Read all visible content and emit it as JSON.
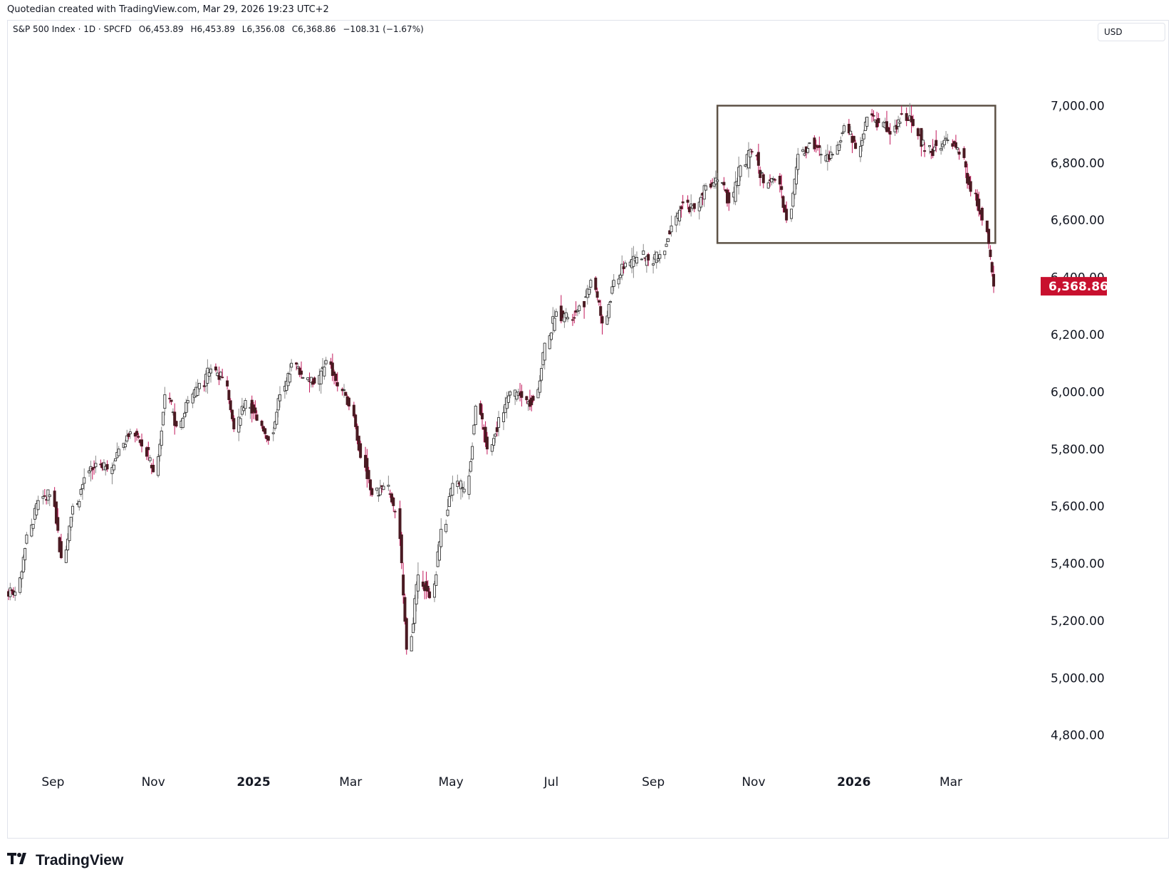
{
  "header": {
    "credit": "Quotedian created with TradingView.com, Mar 29, 2026 19:23 UTC+2"
  },
  "legend": {
    "symbol": "S&P 500 Index · 1D · SPCFD",
    "open": "O6,453.89",
    "high": "H6,453.89",
    "low": "L6,356.08",
    "close": "C6,368.86",
    "change": "−108.31 (−1.67%)"
  },
  "currency_button": {
    "label": "USD"
  },
  "footer": {
    "brand": "TradingView"
  },
  "colors": {
    "up": "#f8f8f8",
    "down": "#4a1a22",
    "wick": "#7a4a52",
    "last_price_bg": "#c8102e",
    "range_box": "#5d5246"
  },
  "chart_data": {
    "type": "candlestick",
    "y_axis": {
      "ticks": [
        4800,
        5000,
        5200,
        5400,
        5600,
        5800,
        6000,
        6200,
        6400,
        6600,
        6800,
        7000
      ],
      "tick_labels": [
        "4,800.00",
        "5,000.00",
        "5,200.00",
        "5,400.00",
        "5,600.00",
        "5,800.00",
        "6,000.00",
        "6,200.00",
        "6,400.00",
        "6,600.00",
        "6,800.00",
        "7,000.00"
      ],
      "range": [
        4670,
        7220
      ],
      "position": "right"
    },
    "x_axis": {
      "tick_labels": [
        "Sep",
        "Nov",
        "2025",
        "Mar",
        "May",
        "Jul",
        "Sep",
        "Nov",
        "2026",
        "Mar"
      ],
      "tick_dates": [
        "2024-09-01",
        "2024-11-01",
        "2025-01-01",
        "2025-03-01",
        "2025-05-01",
        "2025-07-01",
        "2025-09-01",
        "2025-11-01",
        "2026-01-01",
        "2026-03-01"
      ],
      "bold": [
        false,
        false,
        true,
        false,
        false,
        false,
        false,
        false,
        true,
        false
      ],
      "range": [
        "2024-08-05",
        "2026-04-25"
      ]
    },
    "last_price": {
      "label": "6,368.86",
      "value": 6368.86
    },
    "range_box": {
      "date_start": "2025-10-10",
      "date_end": "2026-03-28",
      "price_low": 6520,
      "price_high": 7000
    },
    "series": [
      {
        "date": "2024-08-05",
        "close": 5300
      },
      {
        "date": "2024-08-12",
        "close": 5500
      },
      {
        "date": "2024-08-19",
        "close": 5620
      },
      {
        "date": "2024-08-26",
        "close": 5640
      },
      {
        "date": "2024-09-02",
        "close": 5420
      },
      {
        "date": "2024-09-09",
        "close": 5600
      },
      {
        "date": "2024-09-16",
        "close": 5700
      },
      {
        "date": "2024-09-23",
        "close": 5750
      },
      {
        "date": "2024-09-30",
        "close": 5730
      },
      {
        "date": "2024-10-07",
        "close": 5800
      },
      {
        "date": "2024-10-14",
        "close": 5860
      },
      {
        "date": "2024-10-21",
        "close": 5810
      },
      {
        "date": "2024-10-28",
        "close": 5720
      },
      {
        "date": "2024-11-04",
        "close": 5990
      },
      {
        "date": "2024-11-11",
        "close": 5880
      },
      {
        "date": "2024-11-18",
        "close": 5970
      },
      {
        "date": "2024-11-25",
        "close": 6030
      },
      {
        "date": "2024-12-02",
        "close": 6080
      },
      {
        "date": "2024-12-09",
        "close": 6050
      },
      {
        "date": "2024-12-16",
        "close": 5870
      },
      {
        "date": "2024-12-23",
        "close": 5970
      },
      {
        "date": "2024-12-30",
        "close": 5900
      },
      {
        "date": "2025-01-06",
        "close": 5830
      },
      {
        "date": "2025-01-13",
        "close": 5990
      },
      {
        "date": "2025-01-20",
        "close": 6100
      },
      {
        "date": "2025-01-27",
        "close": 6050
      },
      {
        "date": "2025-02-03",
        "close": 6030
      },
      {
        "date": "2025-02-10",
        "close": 6110
      },
      {
        "date": "2025-02-17",
        "close": 6020
      },
      {
        "date": "2025-02-24",
        "close": 5950
      },
      {
        "date": "2025-03-03",
        "close": 5770
      },
      {
        "date": "2025-03-10",
        "close": 5640
      },
      {
        "date": "2025-03-17",
        "close": 5670
      },
      {
        "date": "2025-03-24",
        "close": 5580
      },
      {
        "date": "2025-03-31",
        "close": 5100
      },
      {
        "date": "2025-04-07",
        "close": 5360
      },
      {
        "date": "2025-04-14",
        "close": 5280
      },
      {
        "date": "2025-04-21",
        "close": 5520
      },
      {
        "date": "2025-04-28",
        "close": 5680
      },
      {
        "date": "2025-05-05",
        "close": 5660
      },
      {
        "date": "2025-05-12",
        "close": 5950
      },
      {
        "date": "2025-05-19",
        "close": 5800
      },
      {
        "date": "2025-05-26",
        "close": 5910
      },
      {
        "date": "2025-06-02",
        "close": 6000
      },
      {
        "date": "2025-06-09",
        "close": 5980
      },
      {
        "date": "2025-06-16",
        "close": 5970
      },
      {
        "date": "2025-06-23",
        "close": 6170
      },
      {
        "date": "2025-06-30",
        "close": 6280
      },
      {
        "date": "2025-07-07",
        "close": 6260
      },
      {
        "date": "2025-07-14",
        "close": 6300
      },
      {
        "date": "2025-07-21",
        "close": 6390
      },
      {
        "date": "2025-07-28",
        "close": 6240
      },
      {
        "date": "2025-08-04",
        "close": 6390
      },
      {
        "date": "2025-08-11",
        "close": 6450
      },
      {
        "date": "2025-08-18",
        "close": 6470
      },
      {
        "date": "2025-08-25",
        "close": 6460
      },
      {
        "date": "2025-09-01",
        "close": 6480
      },
      {
        "date": "2025-09-08",
        "close": 6580
      },
      {
        "date": "2025-09-15",
        "close": 6660
      },
      {
        "date": "2025-09-22",
        "close": 6640
      },
      {
        "date": "2025-09-29",
        "close": 6720
      },
      {
        "date": "2025-10-06",
        "close": 6740
      },
      {
        "date": "2025-10-13",
        "close": 6660
      },
      {
        "date": "2025-10-20",
        "close": 6790
      },
      {
        "date": "2025-10-27",
        "close": 6840
      },
      {
        "date": "2025-11-03",
        "close": 6730
      },
      {
        "date": "2025-11-10",
        "close": 6740
      },
      {
        "date": "2025-11-17",
        "close": 6600
      },
      {
        "date": "2025-11-24",
        "close": 6830
      },
      {
        "date": "2025-12-01",
        "close": 6870
      },
      {
        "date": "2025-12-08",
        "close": 6830
      },
      {
        "date": "2025-12-15",
        "close": 6830
      },
      {
        "date": "2025-12-22",
        "close": 6930
      },
      {
        "date": "2025-12-29",
        "close": 6850
      },
      {
        "date": "2026-01-05",
        "close": 6960
      },
      {
        "date": "2026-01-12",
        "close": 6940
      },
      {
        "date": "2026-01-19",
        "close": 6900
      },
      {
        "date": "2026-01-26",
        "close": 6970
      },
      {
        "date": "2026-02-02",
        "close": 6930
      },
      {
        "date": "2026-02-09",
        "close": 6840
      },
      {
        "date": "2026-02-16",
        "close": 6860
      },
      {
        "date": "2026-02-23",
        "close": 6880
      },
      {
        "date": "2026-03-02",
        "close": 6830
      },
      {
        "date": "2026-03-09",
        "close": 6700
      },
      {
        "date": "2026-03-16",
        "close": 6600
      },
      {
        "date": "2026-03-23",
        "close": 6369
      }
    ]
  }
}
